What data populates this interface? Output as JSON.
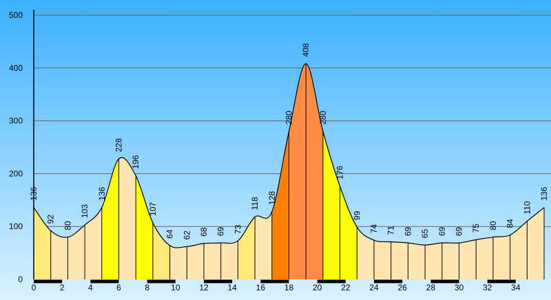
{
  "chart_data": {
    "type": "area",
    "title": "",
    "xlabel": "",
    "ylabel": "",
    "x": [
      0,
      1.2,
      2.4,
      3.6,
      4.8,
      6,
      7.2,
      8.4,
      9.6,
      10.8,
      12,
      13.2,
      14.4,
      15.6,
      16.8,
      18,
      19.2,
      20.4,
      21.6,
      22.8,
      24,
      25.2,
      26.4,
      27.6,
      28.8,
      30,
      31.2,
      32.4,
      33.6,
      34.8,
      36
    ],
    "values": [
      136,
      92,
      80,
      103,
      136,
      228,
      196,
      107,
      64,
      62,
      68,
      69,
      73,
      118,
      128,
      280,
      408,
      280,
      176,
      99,
      74,
      71,
      69,
      65,
      69,
      69,
      75,
      80,
      84,
      110,
      136
    ],
    "value_labels": [
      "136",
      "92",
      "80",
      "103",
      "136",
      "228",
      "196",
      "107",
      "64",
      "62",
      "68",
      "69",
      "73",
      "118",
      "128",
      "280",
      "408",
      "280",
      "176",
      "99",
      "74",
      "71",
      "69",
      "65",
      "69",
      "69",
      "75",
      "80",
      "84",
      "110",
      "136"
    ],
    "xlim": [
      0,
      36
    ],
    "ylim": [
      0,
      500
    ],
    "x_ticks": [
      "0",
      "2",
      "4",
      "6",
      "8",
      "10",
      "12",
      "14",
      "16",
      "18",
      "20",
      "22",
      "24",
      "26",
      "28",
      "30",
      "32",
      "34"
    ],
    "y_ticks": [
      "0",
      "100",
      "200",
      "300",
      "400",
      "500"
    ],
    "grid": true,
    "colors": {
      "background_top": "#3bb0ff",
      "background_bottom": "#d9f2ff",
      "pale": "#ffe6b0",
      "yellow": "#ffff00",
      "light_yellow": "#ffe97a",
      "orange": "#ff8c42",
      "dark_orange": "#ff7f00",
      "grid": "#666666"
    },
    "segment_colors": [
      "light_yellow",
      "pale",
      "pale",
      "pale",
      "yellow",
      "pale",
      "yellow",
      "light_yellow",
      "pale",
      "pale",
      "pale",
      "pale",
      "light_yellow",
      "pale",
      "dark_orange",
      "orange",
      "orange",
      "yellow",
      "yellow",
      "pale",
      "pale",
      "pale",
      "pale",
      "pale",
      "pale",
      "pale",
      "pale",
      "pale",
      "pale",
      "pale"
    ]
  }
}
